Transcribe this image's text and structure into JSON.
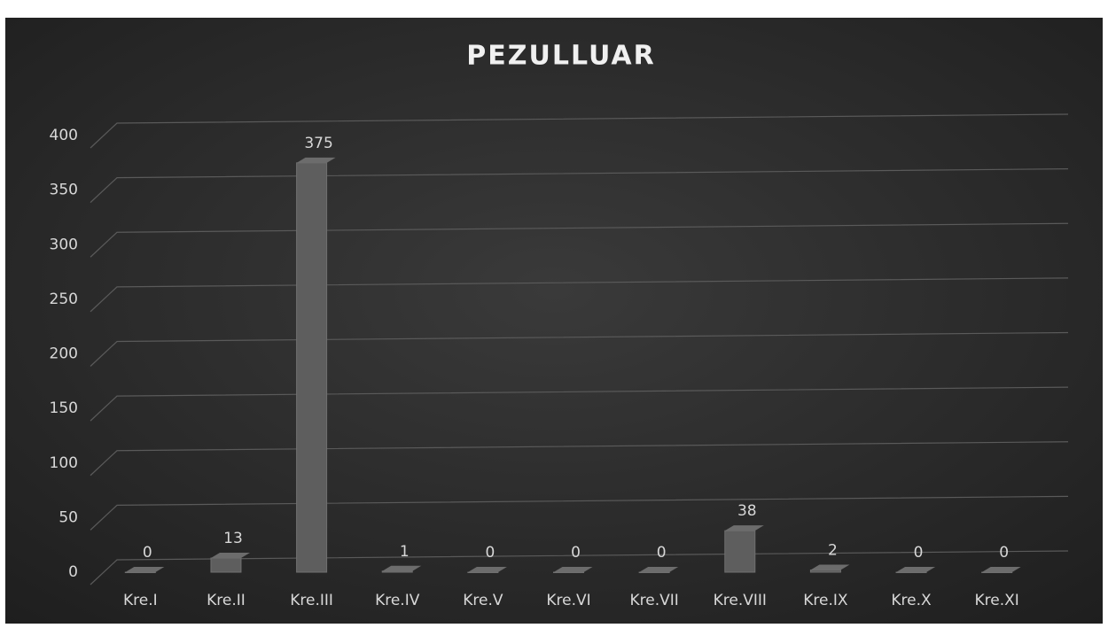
{
  "chart_data": {
    "type": "bar",
    "title": "PEZULLUAR",
    "categories": [
      "Kre.I",
      "Kre.II",
      "Kre.III",
      "Kre.IV",
      "Kre.V",
      "Kre.VI",
      "Kre.VII",
      "Kre.VIII",
      "Kre.IX",
      "Kre.X",
      "Kre.XI"
    ],
    "values": [
      0,
      13,
      375,
      1,
      0,
      0,
      0,
      38,
      2,
      0,
      0
    ],
    "color": "#5e5e5e",
    "ylim": [
      0,
      400
    ],
    "yticks": [
      0,
      50,
      100,
      150,
      200,
      250,
      300,
      350,
      400
    ],
    "grid": true
  }
}
